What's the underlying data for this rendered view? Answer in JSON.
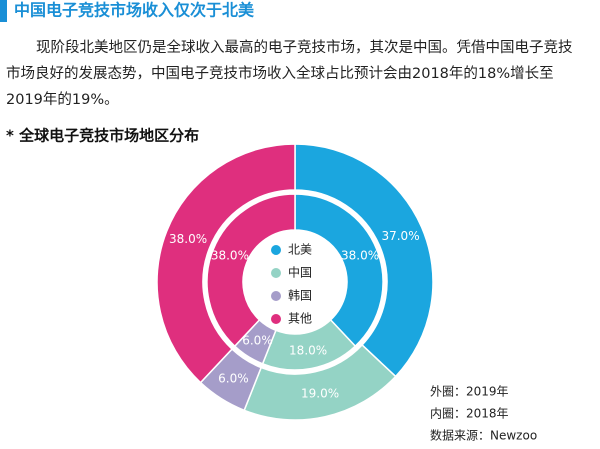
{
  "header": {
    "title": "中国电子竞技市场收入仅次于北美"
  },
  "paragraph": [
    "现阶段北美地区仍是全球收入最高的电子竞技市场，其次是中国。凭借中国电子竞技",
    "市场良好的发展态势，中国电子竞技市场收入全球占比预计会由2018年的18%增长至",
    "2019年的19%。"
  ],
  "chart_data": {
    "type": "donut",
    "title": "* 全球电子竞技市场地区分布",
    "categories": [
      "北美",
      "中国",
      "韩国",
      "其他"
    ],
    "colors": [
      "#1ba6df",
      "#94d3c5",
      "#a59dc9",
      "#df2f7e"
    ],
    "rings": [
      {
        "label": "外圈：2019年",
        "values": [
          37,
          19,
          6,
          38
        ],
        "value_labels": [
          "37.0%",
          "19.0%",
          "6.0%",
          "38.0%"
        ]
      },
      {
        "label": "内圈：2018年",
        "values": [
          38,
          18,
          6,
          38
        ],
        "value_labels": [
          "38.0%",
          "18.0%",
          "6.0%",
          "38.0%"
        ]
      }
    ],
    "source": "数据来源：Newzoo"
  }
}
